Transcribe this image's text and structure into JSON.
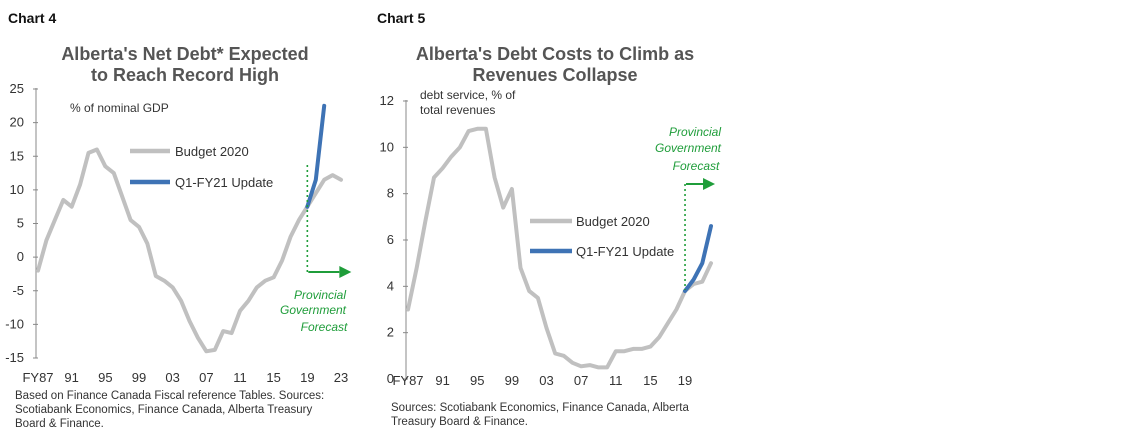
{
  "charts": [
    {
      "chart_number": "Chart 4",
      "title_lines": [
        "Alberta's Net Debt* Expected",
        "to Reach Record High"
      ],
      "unit_label": "% of nominal GDP",
      "source": "Based on Finance Canada Fiscal reference Tables. Sources: Scotiabank Economics, Finance Canada, Alberta Treasury Board & Finance.",
      "forecast_label": [
        "Provincial",
        "Government",
        "Forecast"
      ]
    },
    {
      "chart_number": "Chart 5",
      "title_lines": [
        "Alberta's Debt Costs to Climb as",
        "Revenues Collapse"
      ],
      "unit_label": [
        "debt service, % of",
        "total revenues"
      ],
      "source": "Sources: Scotiabank Economics, Finance Canada, Alberta Treasury Board & Finance.",
      "forecast_label": [
        "Provincial",
        "Government",
        "Forecast"
      ]
    }
  ],
  "colors": {
    "budget": "#c0c0c0",
    "update": "#3e73b5",
    "forecast": "#1f9d3a"
  },
  "chart_data": [
    {
      "type": "line",
      "x_tick_labels": [
        "FY87",
        "91",
        "95",
        "99",
        "03",
        "07",
        "11",
        "15",
        "19",
        "23"
      ],
      "x_tick_years": [
        1987,
        1991,
        1995,
        1999,
        2003,
        2007,
        2011,
        2015,
        2019,
        2023
      ],
      "xlim": [
        1987,
        2023
      ],
      "ylim": [
        -15,
        25
      ],
      "y_ticks": [
        25,
        20,
        15,
        10,
        5,
        0,
        -5,
        -10,
        -15
      ],
      "forecast_start": 2019,
      "series": [
        {
          "name": "Budget 2020",
          "x": [
            1987,
            1988,
            1989,
            1990,
            1991,
            1992,
            1993,
            1994,
            1995,
            1996,
            1997,
            1998,
            1999,
            2000,
            2001,
            2002,
            2003,
            2004,
            2005,
            2006,
            2007,
            2008,
            2009,
            2010,
            2011,
            2012,
            2013,
            2014,
            2015,
            2016,
            2017,
            2018,
            2019,
            2020,
            2021,
            2022,
            2023
          ],
          "y": [
            -2,
            2.5,
            5.5,
            8.5,
            7.5,
            10.8,
            15.5,
            16,
            13.5,
            12.5,
            9,
            5.5,
            4.5,
            2,
            -2.8,
            -3.5,
            -4.5,
            -6.5,
            -9.5,
            -12,
            -14,
            -13.8,
            -11,
            -11.3,
            -8,
            -6.5,
            -4.5,
            -3.5,
            -3,
            -0.5,
            3,
            5.5,
            7.5,
            9.5,
            11.5,
            12.2,
            11.5
          ]
        },
        {
          "name": "Q1-FY21 Update",
          "x": [
            2019,
            2020,
            2021
          ],
          "y": [
            7.5,
            11.5,
            22.5
          ]
        }
      ]
    },
    {
      "type": "line",
      "x_tick_labels": [
        "FY87",
        "91",
        "95",
        "99",
        "03",
        "07",
        "11",
        "15",
        "19"
      ],
      "x_tick_years": [
        1987,
        1991,
        1995,
        1999,
        2003,
        2007,
        2011,
        2015,
        2019
      ],
      "xlim": [
        1987,
        2022
      ],
      "ylim": [
        0,
        12
      ],
      "y_ticks": [
        12,
        10,
        8,
        6,
        4,
        2,
        0
      ],
      "forecast_start": 2019,
      "series": [
        {
          "name": "Budget 2020",
          "x": [
            1987,
            1988,
            1989,
            1990,
            1991,
            1992,
            1993,
            1994,
            1995,
            1996,
            1997,
            1998,
            1999,
            2000,
            2001,
            2002,
            2003,
            2004,
            2005,
            2006,
            2007,
            2008,
            2009,
            2010,
            2011,
            2012,
            2013,
            2014,
            2015,
            2016,
            2017,
            2018,
            2019,
            2020,
            2021,
            2022
          ],
          "y": [
            3,
            4.8,
            6.8,
            8.7,
            9.1,
            9.6,
            10,
            10.7,
            10.8,
            10.8,
            8.7,
            7.4,
            8.2,
            4.8,
            3.8,
            3.5,
            2.2,
            1.1,
            1,
            0.7,
            0.55,
            0.6,
            0.5,
            0.5,
            1.2,
            1.2,
            1.3,
            1.3,
            1.4,
            1.8,
            2.4,
            3,
            3.8,
            4.1,
            4.2,
            5
          ]
        },
        {
          "name": "Q1-FY21 Update",
          "x": [
            2019,
            2020,
            2021,
            2022
          ],
          "y": [
            3.8,
            4.3,
            5,
            6.6
          ]
        }
      ]
    }
  ]
}
